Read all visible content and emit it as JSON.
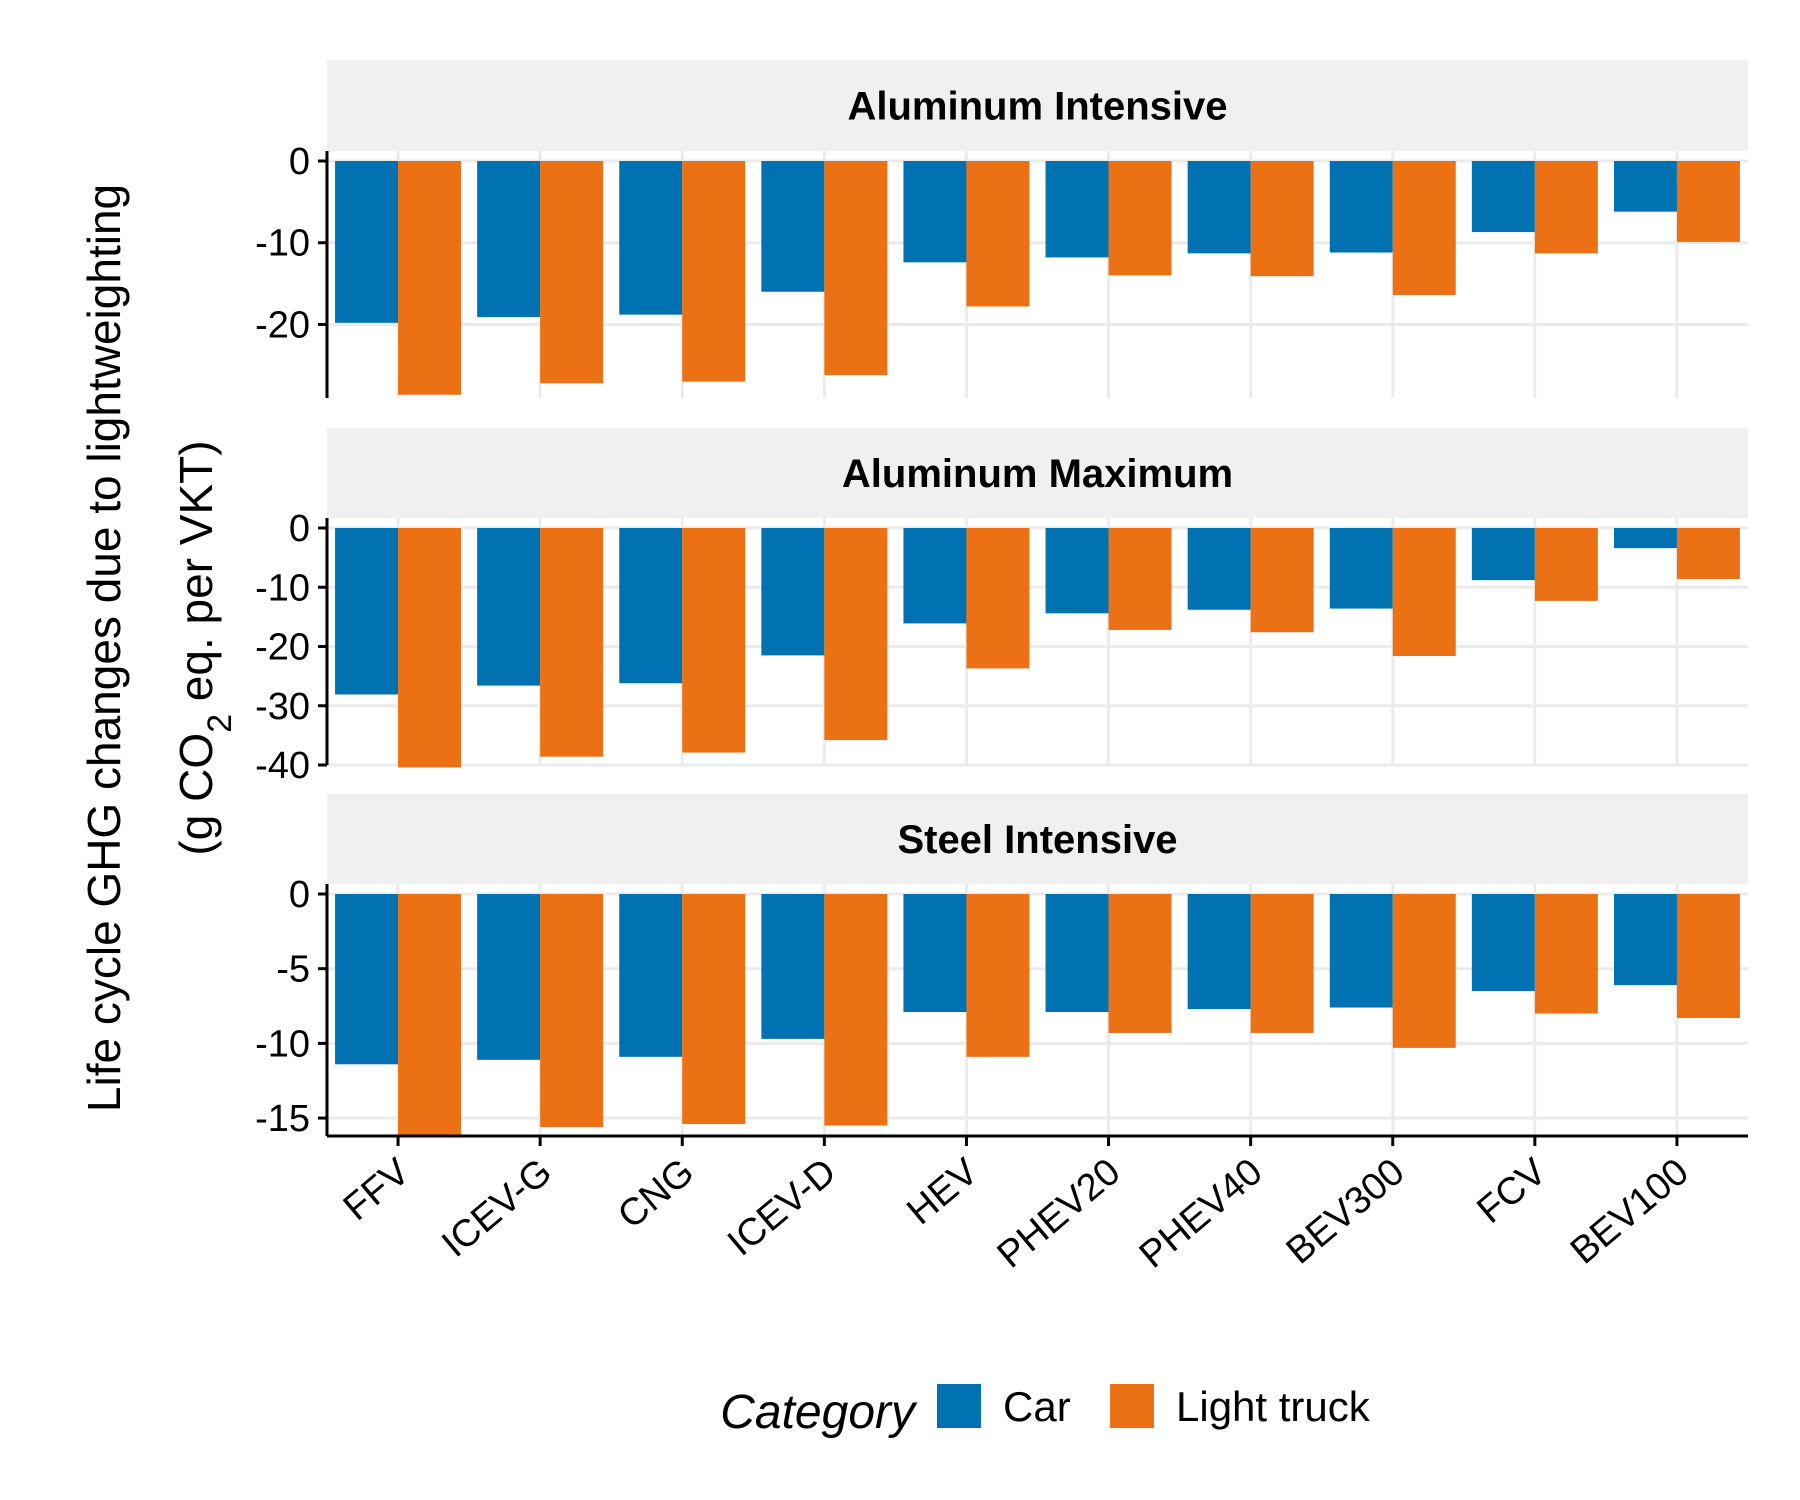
{
  "chart_data": {
    "type": "bar",
    "categories": [
      "FFV",
      "ICEV-G",
      "CNG",
      "ICEV-D",
      "HEV",
      "PHEV20",
      "PHEV40",
      "BEV300",
      "FCV",
      "BEV100"
    ],
    "ylabel_line1": "Life cycle GHG changes due to lightweighting",
    "ylabel_line2_prefix": "(g CO",
    "ylabel_line2_sub": "2",
    "ylabel_line2_suffix": " eq. per VKT)",
    "legend": {
      "title": "Category",
      "position": "bottom",
      "entries": [
        {
          "name": "Car",
          "color": "#0072B2"
        },
        {
          "name": "Light truck",
          "color": "#EC7014"
        }
      ]
    },
    "grid": true,
    "facets": [
      {
        "title": "Aluminum Intensive",
        "ylim": [
          -29,
          0
        ],
        "yticks": [
          0,
          -10,
          -20
        ],
        "series": [
          {
            "name": "Car",
            "values": [
              -19.8,
              -19.1,
              -18.8,
              -16.0,
              -12.4,
              -11.8,
              -11.3,
              -11.2,
              -8.7,
              -6.2
            ]
          },
          {
            "name": "Light truck",
            "values": [
              -28.6,
              -27.2,
              -27.0,
              -26.2,
              -17.8,
              -14.0,
              -14.1,
              -16.4,
              -11.3,
              -9.9
            ]
          }
        ]
      },
      {
        "title": "Aluminum Maximum",
        "ylim": [
          -40,
          0
        ],
        "yticks": [
          0,
          -10,
          -20,
          -30,
          -40
        ],
        "series": [
          {
            "name": "Car",
            "values": [
              -28.1,
              -26.6,
              -26.2,
              -21.5,
              -16.1,
              -14.4,
              -13.8,
              -13.6,
              -8.8,
              -3.4
            ]
          },
          {
            "name": "Light truck",
            "values": [
              -40.4,
              -38.6,
              -37.9,
              -35.8,
              -23.7,
              -17.2,
              -17.6,
              -21.6,
              -12.3,
              -8.6
            ]
          }
        ]
      },
      {
        "title": "Steel Intensive",
        "ylim": [
          -16.2,
          0
        ],
        "yticks": [
          0,
          -5,
          -10,
          -15
        ],
        "series": [
          {
            "name": "Car",
            "values": [
              -11.4,
              -11.1,
              -10.9,
              -9.7,
              -7.9,
              -7.9,
              -7.7,
              -7.6,
              -6.5,
              -6.1
            ]
          },
          {
            "name": "Light truck",
            "values": [
              -16.1,
              -15.6,
              -15.4,
              -15.5,
              -10.9,
              -9.3,
              -9.3,
              -10.3,
              -8.0,
              -8.3
            ]
          }
        ]
      }
    ]
  }
}
